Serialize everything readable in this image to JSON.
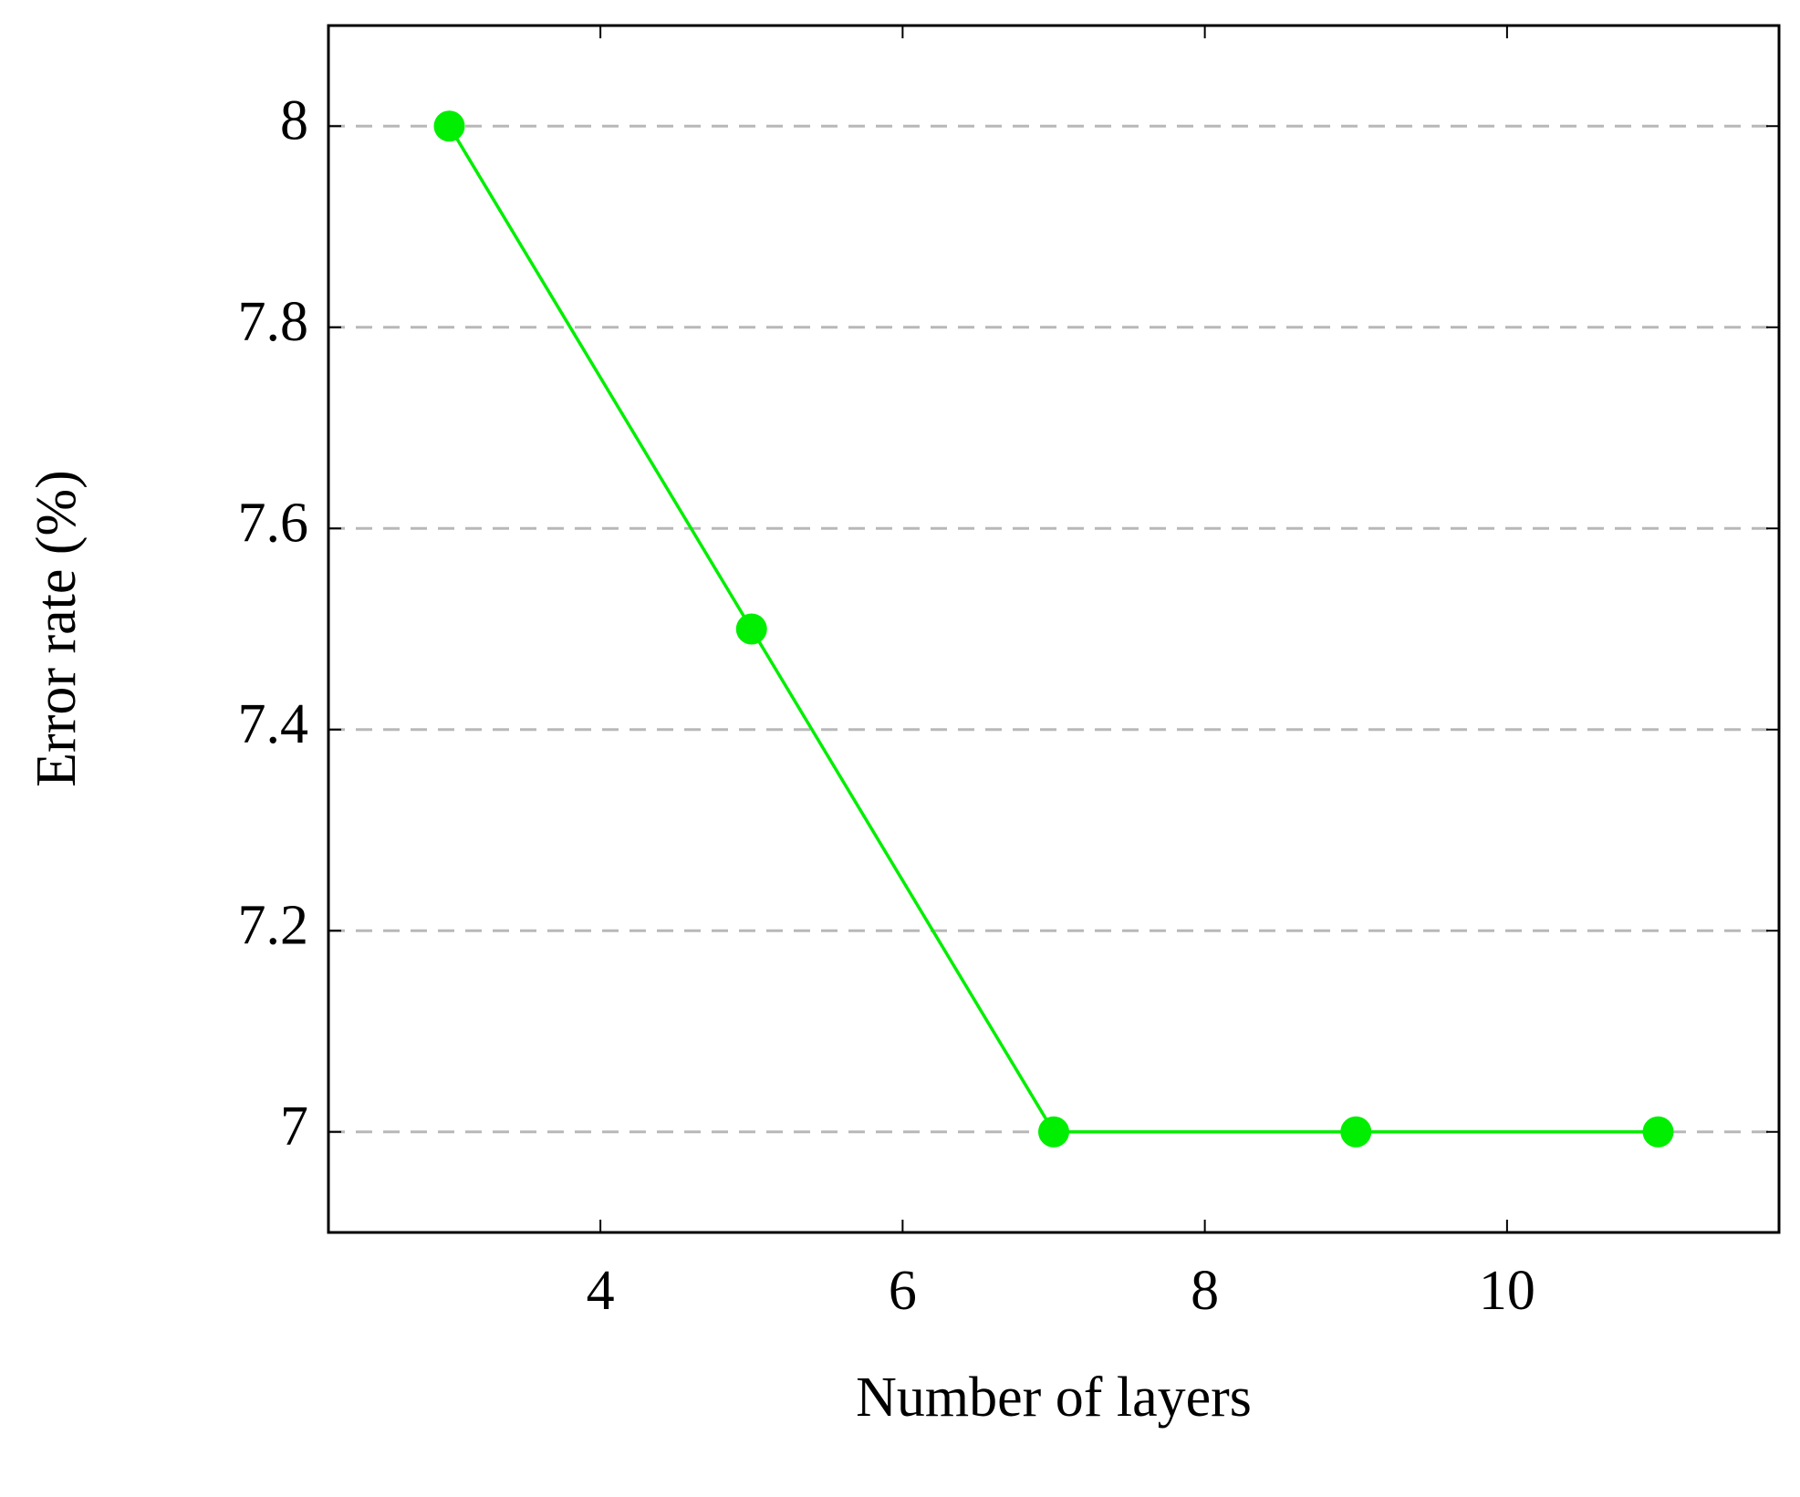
{
  "chart_data": {
    "type": "line",
    "x_label": "Number of layers",
    "y_label": "Error rate (%)",
    "x": [
      3,
      5,
      7,
      9,
      11
    ],
    "series": [
      {
        "name": null,
        "color": "#00ee00",
        "values": [
          8,
          7.5,
          7,
          7,
          7
        ]
      }
    ],
    "xlim": [
      2.2,
      11.8
    ],
    "ylim": [
      6.9,
      8.1
    ],
    "xticks": [
      4,
      6,
      8,
      10
    ],
    "yticks": [
      7,
      7.2,
      7.4,
      7.6,
      7.8,
      8
    ],
    "grid": true
  }
}
